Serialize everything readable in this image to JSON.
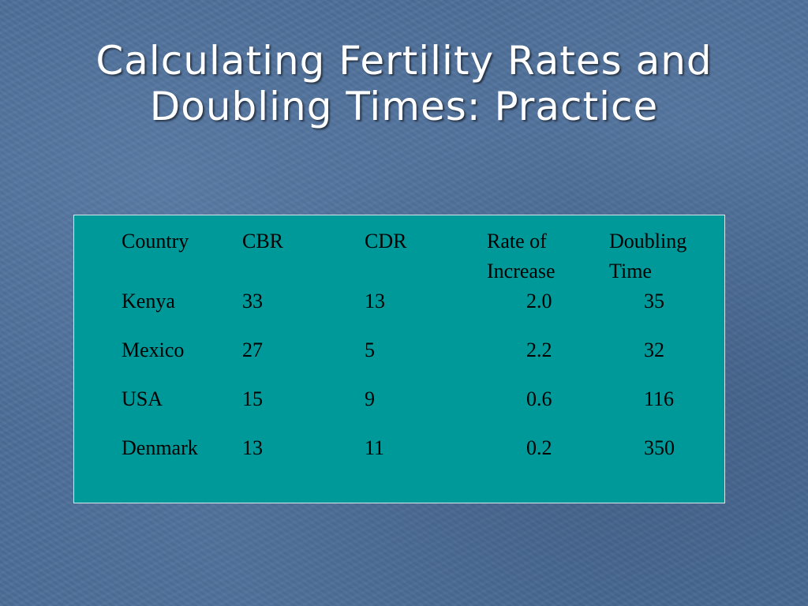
{
  "slide": {
    "title_line1": "Calculating Fertility Rates and",
    "title_line2": "Doubling Times: Practice"
  },
  "table": {
    "headers": {
      "country": "Country",
      "cbr": "CBR",
      "cdr": "CDR",
      "rate_line1": "Rate of",
      "rate_line2": "Increase",
      "doubling_line1": "Doubling",
      "doubling_line2": "Time"
    },
    "rows": [
      {
        "country": "Kenya",
        "cbr": "33",
        "cdr": "13",
        "rate": "2.0",
        "doubling": "35"
      },
      {
        "country": "Mexico",
        "cbr": "27",
        "cdr": "5",
        "rate": "2.2",
        "doubling": "32"
      },
      {
        "country": "USA",
        "cbr": "15",
        "cdr": "9",
        "rate": "0.6",
        "doubling": "116"
      },
      {
        "country": "Denmark",
        "cbr": "13",
        "cdr": "11",
        "rate": "0.2",
        "doubling": "350"
      }
    ]
  },
  "colors": {
    "background": "#4a6c97",
    "table_fill": "#009999",
    "title_text": "#ffffff",
    "table_text": "#000000"
  }
}
